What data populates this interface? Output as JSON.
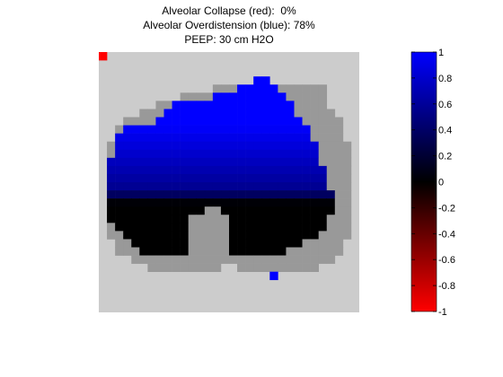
{
  "chart_data": {
    "type": "heatmap",
    "title_lines": [
      "Alveolar Collapse (red):  0%",
      "Alveolar Overdistension (blue): 78%",
      "PEEP: 30 cm H2O"
    ],
    "grid": {
      "cols": 32,
      "rows": 32
    },
    "colors": {
      "background": "#cccccc",
      "thorax": "#999999",
      "collapse": "#ff0000",
      "overdistension": "#0000ff",
      "neutral": "#000000"
    },
    "colorbar": {
      "ticks": [
        "1",
        "0.8",
        "0.6",
        "0.4",
        "0.2",
        "0",
        "-0.2",
        "-0.4",
        "-0.6",
        "-0.8",
        "-1"
      ],
      "range": [
        -1,
        1
      ],
      "gradient": [
        "#0000ff",
        "#000000",
        "#ff0000"
      ]
    },
    "thorax_rows": [
      [
        4,
        14,
        27
      ],
      [
        5,
        10,
        27
      ],
      [
        6,
        7,
        27
      ],
      [
        7,
        5,
        28
      ],
      [
        8,
        3,
        29
      ],
      [
        9,
        2,
        29
      ],
      [
        10,
        2,
        29
      ],
      [
        11,
        1,
        30
      ],
      [
        12,
        1,
        30
      ],
      [
        13,
        1,
        30
      ],
      [
        14,
        1,
        30
      ],
      [
        15,
        1,
        30
      ],
      [
        16,
        1,
        30
      ],
      [
        17,
        1,
        30
      ],
      [
        18,
        1,
        30
      ],
      [
        19,
        1,
        30
      ],
      [
        20,
        1,
        30
      ],
      [
        21,
        1,
        30
      ],
      [
        22,
        1,
        30
      ],
      [
        23,
        2,
        29
      ],
      [
        24,
        2,
        29
      ],
      [
        25,
        4,
        28
      ],
      [
        26,
        6,
        26
      ]
    ],
    "thorax_holes": [
      [
        26,
        15,
        16
      ]
    ],
    "lung_rows": [
      [
        3,
        19,
        20
      ],
      [
        4,
        17,
        21
      ],
      [
        5,
        14,
        22
      ],
      [
        6,
        9,
        23
      ],
      [
        7,
        8,
        23
      ],
      [
        8,
        7,
        24
      ],
      [
        9,
        3,
        25
      ],
      [
        10,
        2,
        25
      ],
      [
        11,
        2,
        26
      ],
      [
        12,
        2,
        26
      ],
      [
        13,
        1,
        26
      ],
      [
        14,
        1,
        27
      ],
      [
        15,
        1,
        27
      ],
      [
        16,
        1,
        27
      ],
      [
        17,
        1,
        28
      ],
      [
        18,
        1,
        28
      ],
      [
        19,
        1,
        28
      ],
      [
        20,
        1,
        27
      ],
      [
        21,
        2,
        27
      ],
      [
        22,
        3,
        26
      ],
      [
        23,
        4,
        24
      ],
      [
        24,
        5,
        22
      ]
    ],
    "lung_gaps": [
      [
        19,
        13,
        14
      ],
      [
        20,
        11,
        15
      ],
      [
        21,
        11,
        15
      ],
      [
        22,
        11,
        15
      ],
      [
        23,
        11,
        15
      ],
      [
        24,
        11,
        15
      ]
    ],
    "blue_to_black_row": 16.5,
    "collapsed_pixels": [
      [
        0,
        0
      ]
    ],
    "isolated_blue_pixels": [
      [
        27,
        21
      ]
    ]
  }
}
